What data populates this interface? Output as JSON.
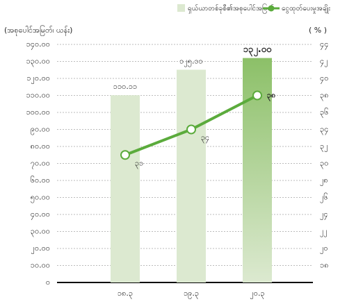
{
  "chart_data": {
    "type": "bar_line",
    "y_label": "(အစုပေါင်အမြတ်၊ ယန်း)",
    "y2_label": "( % )",
    "categories": [
      "၁၈.၃",
      "၁၉.၃",
      "၂၀.၃"
    ],
    "series": [
      {
        "name": "ရှယ်ယာတစ်ခုစီ၏အစုပေါင်အမြတ်",
        "type": "bar",
        "color": "#dce9d0",
        "highlight_color": "#8cc068",
        "values": [
          110.11,
          125.11,
          132.0
        ],
        "value_labels": [
          "၁၁၀.၁၁",
          "၁၂၅.၁၁",
          "၁၃၂.၀၀"
        ]
      },
      {
        "name": "ငွေထုတ်ပေးမှုအချိုး",
        "type": "line",
        "axis": "y2",
        "color": "#5bab3c",
        "values": [
          31,
          34,
          38
        ],
        "value_labels": [
          "၃၁",
          "၃၄",
          "၃၈"
        ]
      }
    ],
    "ylim": [
      0,
      140
    ],
    "yticks": [
      {
        "value": 0,
        "label": "၀"
      },
      {
        "value": 10,
        "label": "၁၀.၀၀"
      },
      {
        "value": 20,
        "label": "၂၀.၀၀"
      },
      {
        "value": 30,
        "label": "၃၀.၀၀"
      },
      {
        "value": 40,
        "label": "၄၀.၀၀"
      },
      {
        "value": 50,
        "label": "၅၀.၀၀"
      },
      {
        "value": 60,
        "label": "၆၀.၀၀"
      },
      {
        "value": 70,
        "label": "၇၀.၀၀"
      },
      {
        "value": 80,
        "label": "၈၀.၀၀"
      },
      {
        "value": 90,
        "label": "၉၀.၀၀"
      },
      {
        "value": 100,
        "label": "၁၀၀.၀၀"
      },
      {
        "value": 110,
        "label": "၁၁၀.၀၀"
      },
      {
        "value": 120,
        "label": "၁၂၀.၀၀"
      },
      {
        "value": 130,
        "label": "၁၃၀.၀၀"
      },
      {
        "value": 140,
        "label": "၁၄၀.၀၀"
      }
    ],
    "y2lim": [
      16,
      44
    ],
    "y2ticks": [
      {
        "value": 18,
        "label": "၁၈"
      },
      {
        "value": 20,
        "label": "၂၀"
      },
      {
        "value": 22,
        "label": "၂၂"
      },
      {
        "value": 24,
        "label": "၂၄"
      },
      {
        "value": 26,
        "label": "၂၆"
      },
      {
        "value": 28,
        "label": "၂၈"
      },
      {
        "value": 30,
        "label": "၃၀"
      },
      {
        "value": 32,
        "label": "၃၂"
      },
      {
        "value": 34,
        "label": "၃၄"
      },
      {
        "value": 36,
        "label": "၃၆"
      },
      {
        "value": 38,
        "label": "၃၈"
      },
      {
        "value": 40,
        "label": "၄၀"
      },
      {
        "value": 42,
        "label": "၄၂"
      },
      {
        "value": 44,
        "label": "၄၄"
      }
    ],
    "grid": true,
    "legend": "top-right"
  }
}
